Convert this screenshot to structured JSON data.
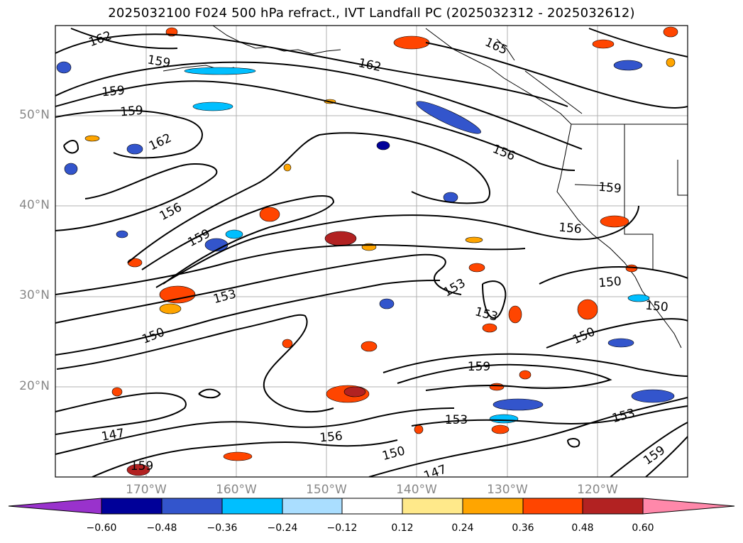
{
  "title": "2025032100 F024 500 hPa refract., IVT Landfall PC (2025032312 - 2025032612)",
  "map": {
    "lon_range": [
      -180,
      -110
    ],
    "lat_range": [
      10,
      60
    ],
    "lat_labels": [
      "50°N",
      "40°N",
      "30°N",
      "20°N"
    ],
    "lon_labels": [
      "170°W",
      "160°W",
      "150°W",
      "140°W",
      "130°W",
      "120°W"
    ],
    "contour_labels": [
      "162",
      "165",
      "162",
      "159",
      "159",
      "159",
      "162",
      "156",
      "156",
      "159",
      "156",
      "159",
      "153",
      "153",
      "153",
      "150",
      "150",
      "150",
      "150",
      "159",
      "147",
      "156",
      "153",
      "150",
      "147",
      "153",
      "159",
      "159"
    ]
  },
  "colorbar": {
    "ticks": [
      "−0.60",
      "−0.48",
      "−0.36",
      "−0.24",
      "−0.12",
      "0.12",
      "0.24",
      "0.36",
      "0.48",
      "0.60"
    ],
    "colors": [
      "#9932cc",
      "#000099",
      "#3355cc",
      "#00bfff",
      "#aadeff",
      "#ffffff",
      "#ffe98a",
      "#ffa500",
      "#ff4500",
      "#b22222",
      "#ff88aa"
    ]
  }
}
